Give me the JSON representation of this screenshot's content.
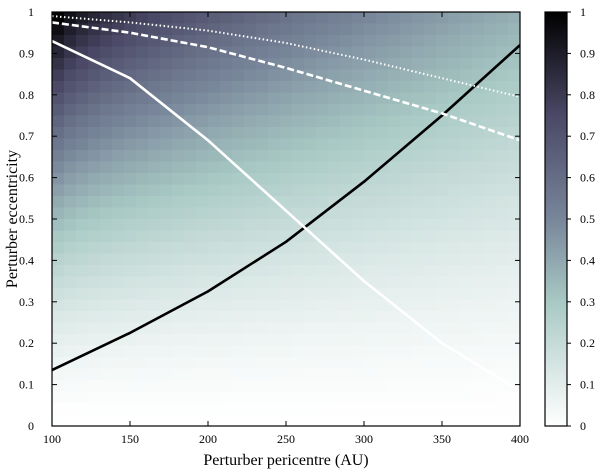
{
  "chart_data": [
    {
      "type": "heatmap",
      "xlabel": "Perturber pericentre (AU)",
      "ylabel": "Perturber eccentricity",
      "xlim": [
        100,
        400
      ],
      "ylim": [
        0,
        1
      ],
      "x_ticks": [
        "100",
        "150",
        "200",
        "250",
        "300",
        "350",
        "400"
      ],
      "y_ticks": [
        "0",
        "0.1",
        "0.2",
        "0.3",
        "0.4",
        "0.5",
        "0.6",
        "0.7",
        "0.8",
        "0.9",
        "1"
      ],
      "grid": false,
      "colormap": {
        "low": "#ffffff",
        "mid": "#a8c9c4",
        "high_mid": "#5a5878",
        "high": "#000000"
      },
      "series": [
        {
          "style": "solid",
          "color": "#000000",
          "x": [
            100,
            150,
            200,
            250,
            300,
            350,
            400
          ],
          "y": [
            0.135,
            0.225,
            0.325,
            0.445,
            0.59,
            0.75,
            0.92
          ]
        },
        {
          "style": "solid",
          "color": "#ffffff",
          "x": [
            100,
            150,
            200,
            250,
            300,
            350,
            400
          ],
          "y": [
            0.93,
            0.84,
            0.69,
            0.52,
            0.35,
            0.2,
            0.085
          ]
        },
        {
          "style": "dashed",
          "color": "#ffffff",
          "x": [
            100,
            150,
            200,
            250,
            300,
            350,
            400
          ],
          "y": [
            0.975,
            0.95,
            0.915,
            0.865,
            0.81,
            0.755,
            0.69
          ]
        },
        {
          "style": "dotted",
          "color": "#ffffff",
          "x": [
            100,
            150,
            200,
            250,
            300,
            350,
            400
          ],
          "y": [
            0.99,
            0.975,
            0.955,
            0.925,
            0.885,
            0.84,
            0.795
          ]
        }
      ]
    },
    {
      "type": "colorbar",
      "range": [
        0,
        1
      ],
      "ticks": [
        "0",
        "0.1",
        "0.2",
        "0.3",
        "0.4",
        "0.5",
        "0.6",
        "0.7",
        "0.8",
        "0.9",
        "1"
      ]
    }
  ]
}
